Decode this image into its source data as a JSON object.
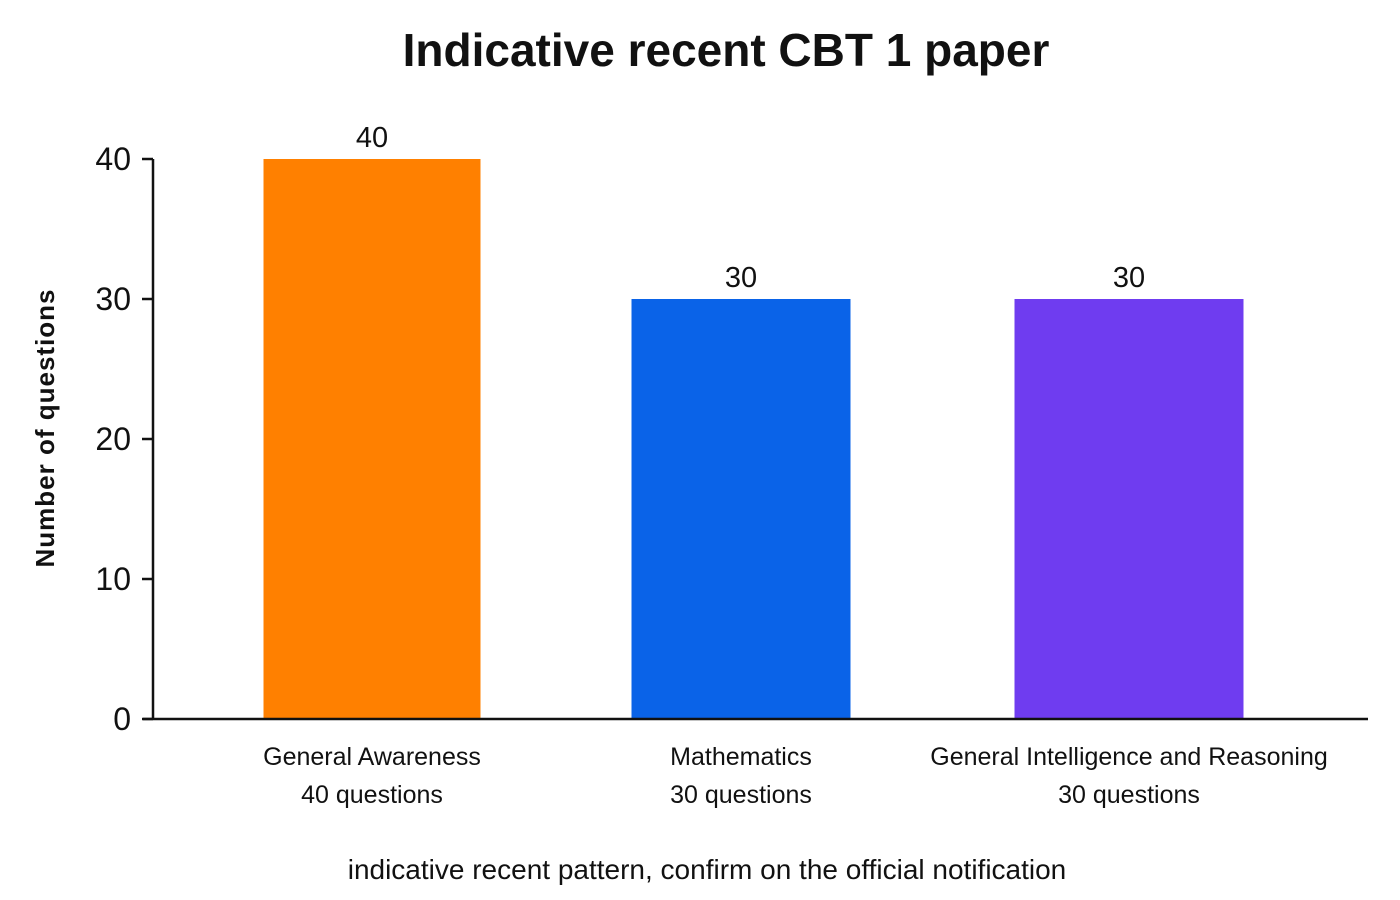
{
  "chart_data": {
    "type": "bar",
    "title": "Indicative recent CBT 1 paper",
    "xlabel": "",
    "ylabel": "Number of questions",
    "categories": [
      {
        "name": "General Awareness",
        "sub": "40 questions"
      },
      {
        "name": "Mathematics",
        "sub": "30 questions"
      },
      {
        "name": "General Intelligence and Reasoning",
        "sub": "30 questions"
      }
    ],
    "values": [
      40,
      30,
      30
    ],
    "data_labels": [
      "40",
      "30",
      "30"
    ],
    "colors": [
      "#FF8000",
      "#0A63E8",
      "#6F3CF0"
    ],
    "ylim": [
      0,
      40
    ],
    "yticks": [
      {
        "value": 0,
        "label": "0"
      },
      {
        "value": 10,
        "label": "10"
      },
      {
        "value": 20,
        "label": "20"
      },
      {
        "value": 30,
        "label": "30"
      },
      {
        "value": 40,
        "label": "40"
      }
    ],
    "grid": false,
    "legend": "none",
    "note": "indicative recent pattern, confirm on the official notification"
  }
}
